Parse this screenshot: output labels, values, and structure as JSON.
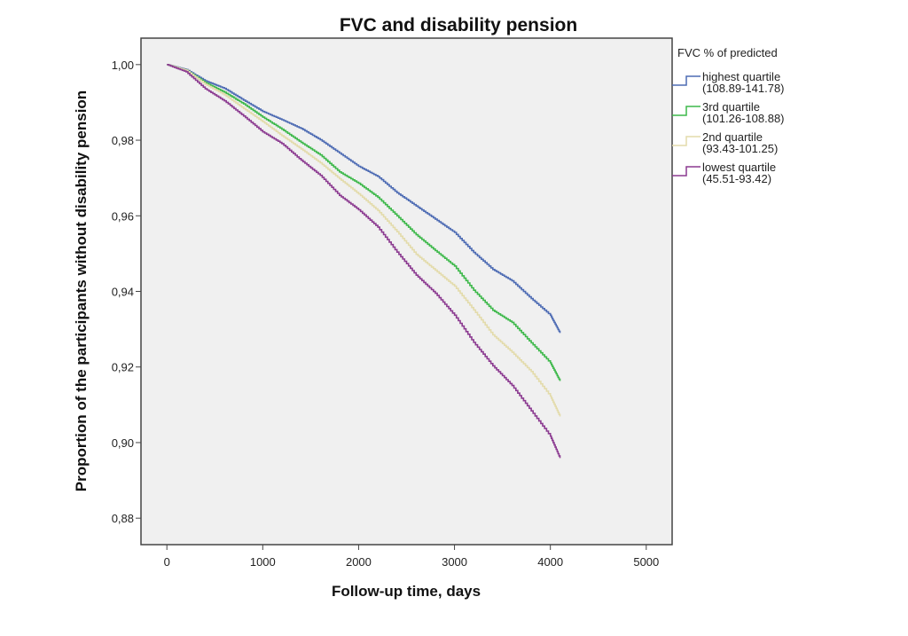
{
  "chart_data": {
    "type": "line",
    "title": "FVC and disability pension",
    "xlabel": "Follow-up time, days",
    "ylabel": "Proportion of the participants without disability pension",
    "xlim": [
      -270,
      5270
    ],
    "ylim": [
      0.873,
      1.007
    ],
    "xticks": [
      0,
      1000,
      2000,
      3000,
      4000,
      5000
    ],
    "xtick_labels": [
      "0",
      "1000",
      "2000",
      "3000",
      "4000",
      "5000"
    ],
    "yticks": [
      0.88,
      0.9,
      0.92,
      0.94,
      0.96,
      0.98,
      1.0
    ],
    "ytick_labels": [
      "0,88",
      "0,90",
      "0,92",
      "0,94",
      "0,96",
      "0,98",
      "1,00"
    ],
    "grid": false,
    "background": "#f0f0f0",
    "legend": {
      "title": "FVC % of predicted",
      "position": "right"
    },
    "series": [
      {
        "name": "highest quartile",
        "range": "(108.89-141.78)",
        "color": "#4d6bb3",
        "x": [
          0,
          200,
          400,
          600,
          800,
          1000,
          1200,
          1400,
          1600,
          1800,
          2000,
          2200,
          2400,
          2600,
          2800,
          3000,
          3200,
          3400,
          3600,
          3800,
          4000,
          4100
        ],
        "y": [
          1.0,
          0.9987,
          0.9957,
          0.9937,
          0.9906,
          0.9876,
          0.9854,
          0.9831,
          0.9801,
          0.9766,
          0.9731,
          0.9704,
          0.9661,
          0.9626,
          0.9591,
          0.9556,
          0.9503,
          0.9458,
          0.9428,
          0.9381,
          0.9337,
          0.929
        ]
      },
      {
        "name": "3rd quartile",
        "range": "(101.26-108.88)",
        "color": "#3db84a",
        "x": [
          0,
          200,
          400,
          600,
          800,
          1000,
          1200,
          1400,
          1600,
          1800,
          2000,
          2200,
          2400,
          2600,
          2800,
          3000,
          3200,
          3400,
          3600,
          3800,
          4000,
          4100
        ],
        "y": [
          1.0,
          0.9985,
          0.9952,
          0.9927,
          0.9896,
          0.9861,
          0.9829,
          0.9794,
          0.9761,
          0.9716,
          0.9686,
          0.9649,
          0.96,
          0.955,
          0.9508,
          0.9467,
          0.9403,
          0.935,
          0.9318,
          0.9264,
          0.9211,
          0.9163
        ]
      },
      {
        "name": "2nd quartile",
        "range": "(93.43-101.25)",
        "color": "#e3dbab",
        "x": [
          0,
          200,
          400,
          600,
          800,
          1000,
          1200,
          1400,
          1600,
          1800,
          2000,
          2200,
          2400,
          2600,
          2800,
          3000,
          3200,
          3400,
          3600,
          3800,
          4000,
          4100
        ],
        "y": [
          1.0,
          0.9985,
          0.9948,
          0.992,
          0.9884,
          0.9849,
          0.9812,
          0.9777,
          0.974,
          0.9698,
          0.9658,
          0.9614,
          0.9558,
          0.9498,
          0.9456,
          0.9414,
          0.9351,
          0.9285,
          0.9239,
          0.9188,
          0.9123,
          0.9069
        ]
      },
      {
        "name": "lowest quartile",
        "range": "(45.51-93.42)",
        "color": "#8b3a90",
        "x": [
          0,
          200,
          400,
          600,
          800,
          1000,
          1200,
          1400,
          1600,
          1800,
          2000,
          2200,
          2400,
          2600,
          2800,
          3000,
          3200,
          3400,
          3600,
          3800,
          4000,
          4100
        ],
        "y": [
          1.0,
          0.9981,
          0.9936,
          0.9904,
          0.9864,
          0.9822,
          0.9791,
          0.9747,
          0.9707,
          0.9654,
          0.9616,
          0.957,
          0.9504,
          0.9443,
          0.9395,
          0.9337,
          0.9265,
          0.9203,
          0.9151,
          0.9084,
          0.9017,
          0.8959
        ]
      }
    ]
  }
}
